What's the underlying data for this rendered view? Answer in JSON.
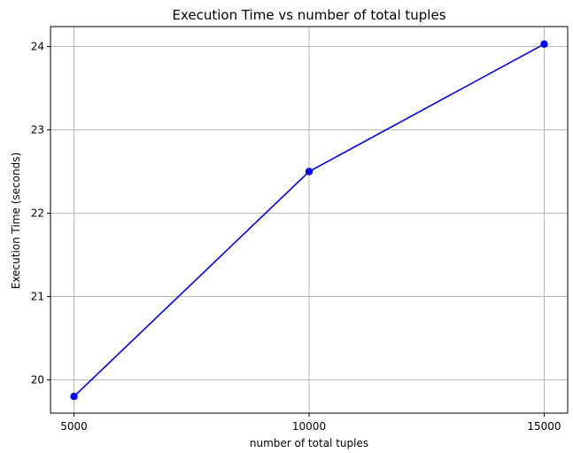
{
  "chart_data": {
    "type": "line",
    "title": "Execution Time vs number of total tuples",
    "xlabel": "number of total tuples",
    "ylabel": "Execution Time (seconds)",
    "x": [
      5000,
      10000,
      15000
    ],
    "series": [
      {
        "values": [
          19.8,
          22.5,
          24.03
        ],
        "color": "#0000ff",
        "marker": "circle"
      }
    ],
    "xlim": [
      4500,
      15500
    ],
    "ylim": [
      19.6,
      24.24
    ],
    "xticks": [
      5000,
      10000,
      15000
    ],
    "xtick_labels": [
      "5000",
      "10000",
      "15000"
    ],
    "yticks": [
      20,
      21,
      22,
      23,
      24
    ],
    "ytick_labels": [
      "20",
      "21",
      "22",
      "23",
      "24"
    ],
    "grid": true,
    "line_color": "#0000ff",
    "grid_color": "#b0b0b0",
    "axes_color": "#000000"
  }
}
